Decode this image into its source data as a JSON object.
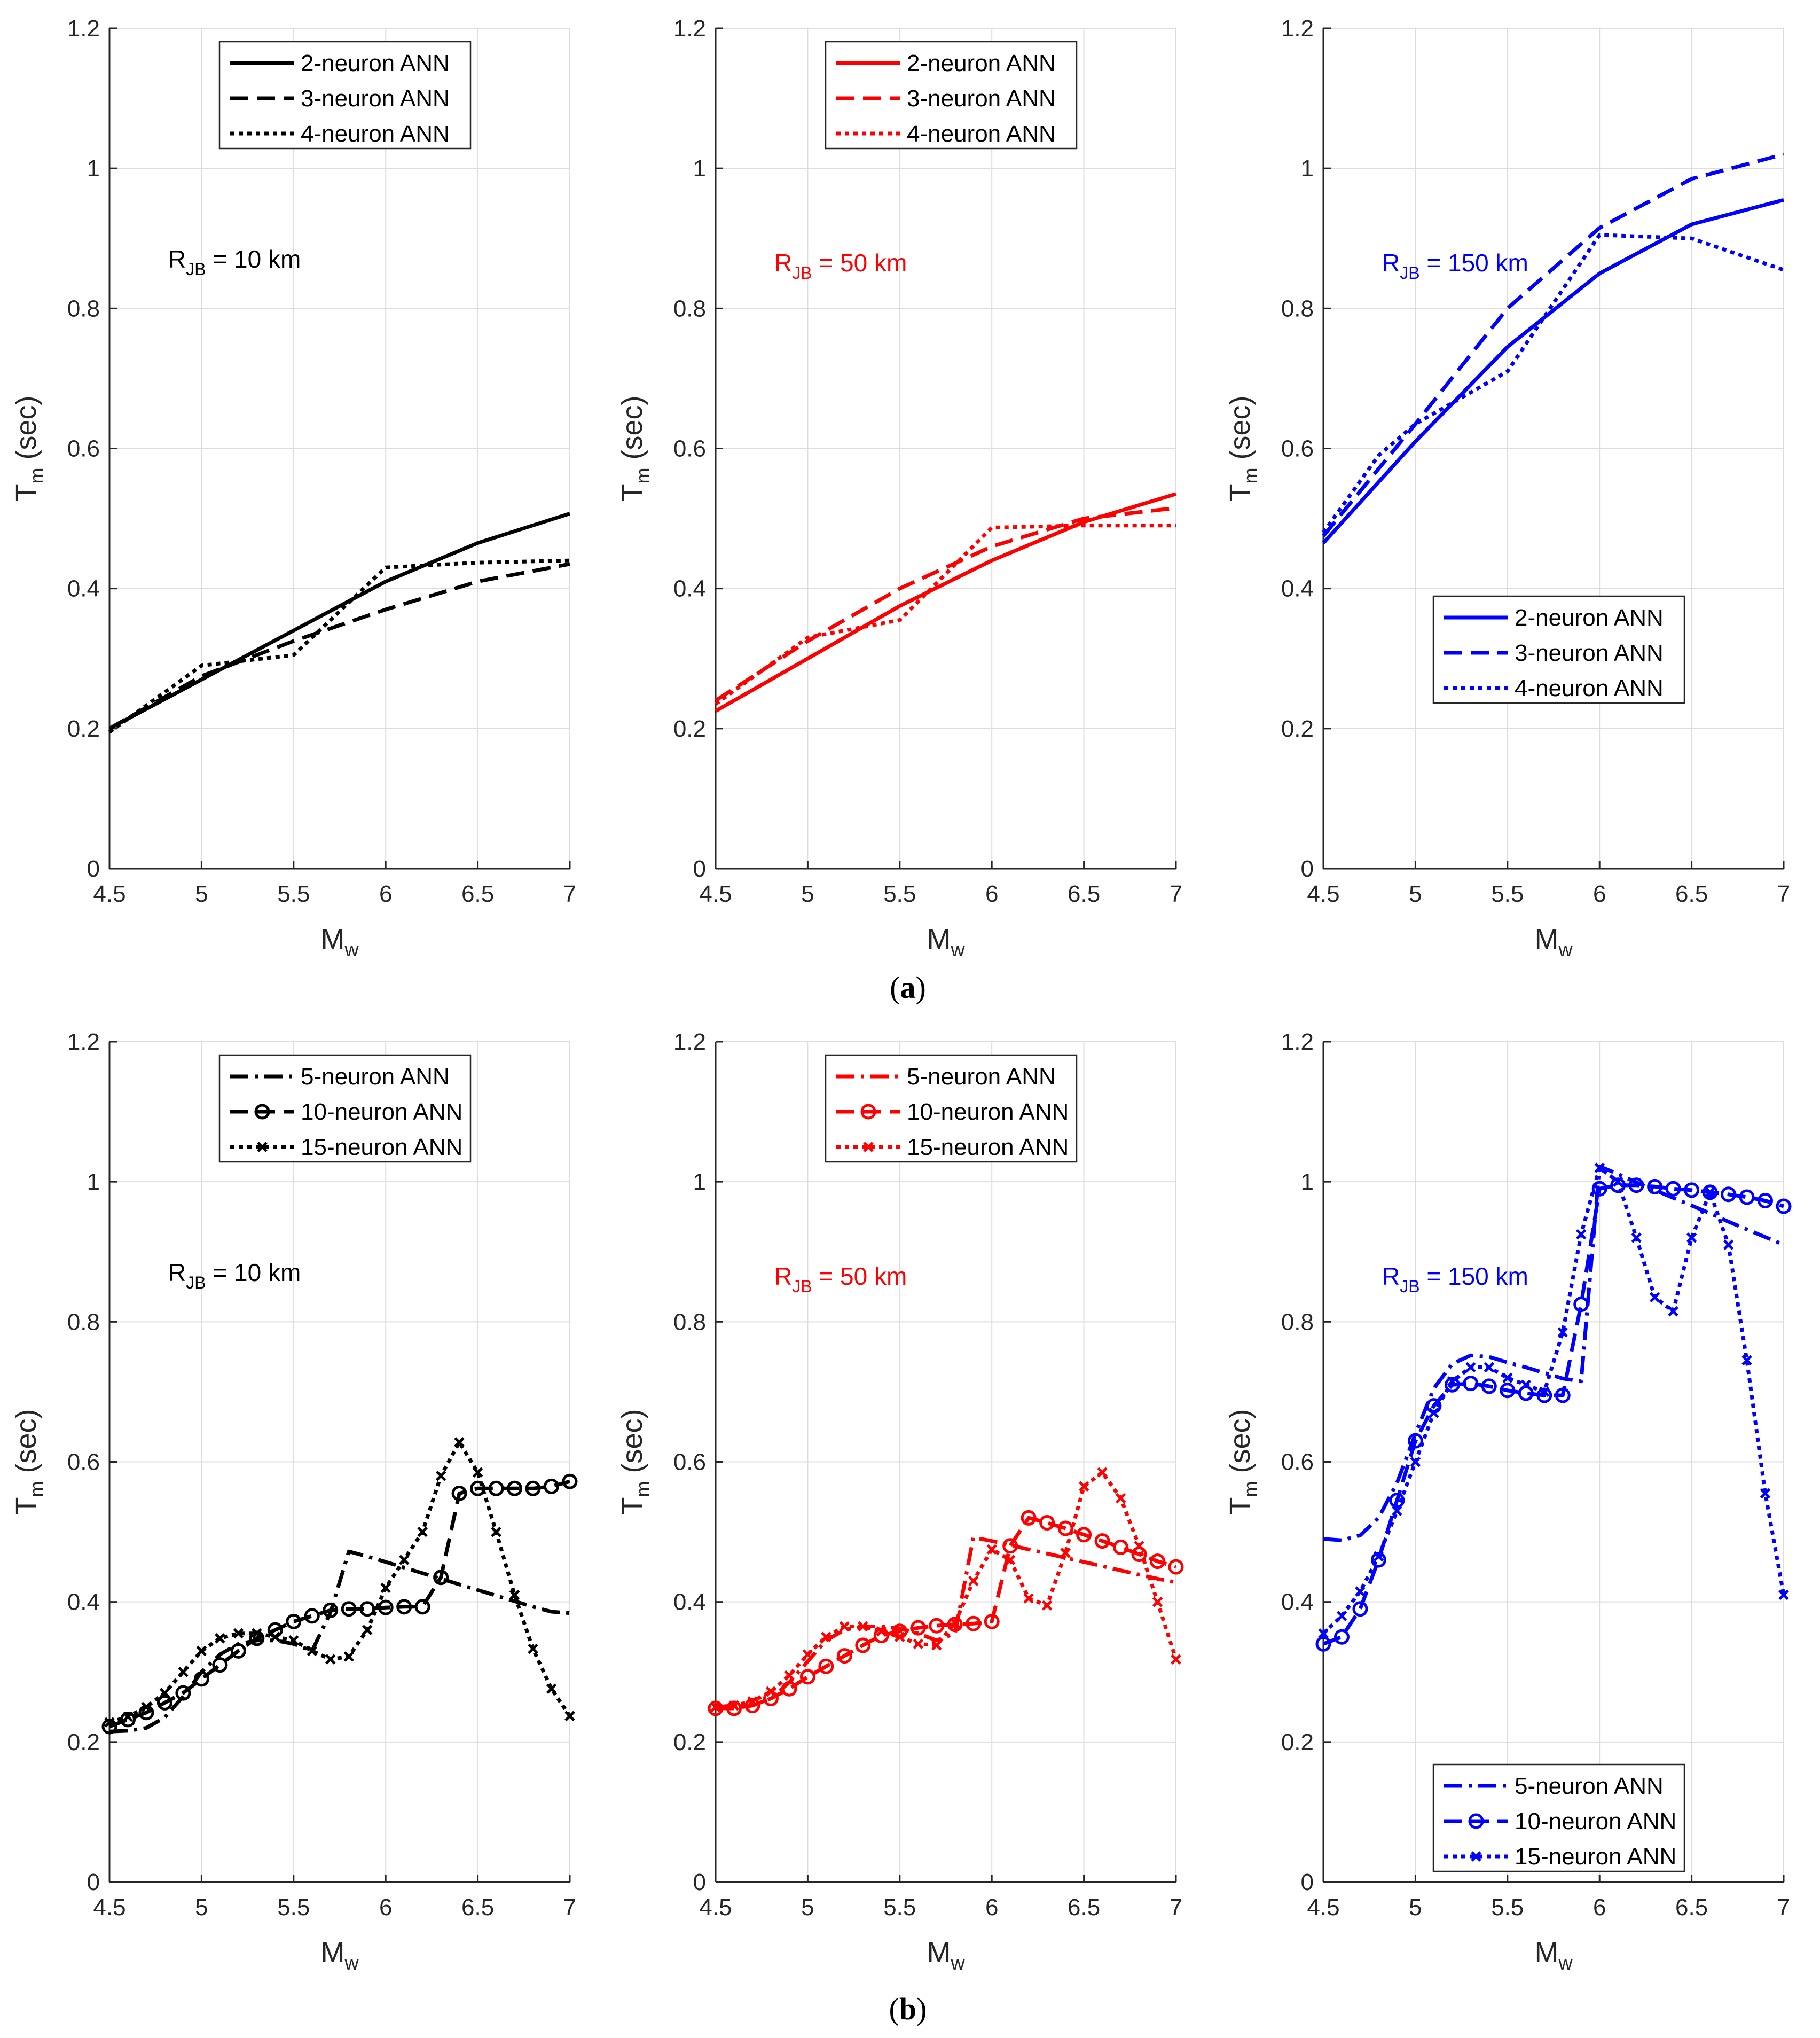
{
  "figure": {
    "caption_a_letter": "a",
    "caption_b_letter": "b"
  },
  "chart_data": [
    {
      "type": "line",
      "panel": "a",
      "color": "#000000",
      "xlabel": "M",
      "xlabel_sub": "w",
      "ylabel": "T",
      "ylabel_sub": "m",
      "ylabel_unit": "(sec)",
      "xlim": [
        4.5,
        7
      ],
      "ylim": [
        0,
        1.2
      ],
      "xticks": [
        4.5,
        5,
        5.5,
        6,
        6.5,
        7
      ],
      "yticks": [
        0,
        0.2,
        0.4,
        0.6,
        0.8,
        1,
        1.2
      ],
      "annotation": {
        "main": "R",
        "sub": "JB",
        "rest": " = 10 km"
      },
      "legend_position": "top-center",
      "series": [
        {
          "name": "2-neuron ANN",
          "style": "solid",
          "x": [
            4.5,
            5,
            5.5,
            6,
            6.5,
            7
          ],
          "y": [
            0.2,
            0.27,
            0.34,
            0.41,
            0.465,
            0.507
          ]
        },
        {
          "name": "3-neuron ANN",
          "style": "dashed",
          "x": [
            4.5,
            5,
            5.5,
            6,
            6.5,
            7
          ],
          "y": [
            0.2,
            0.275,
            0.325,
            0.37,
            0.41,
            0.435
          ]
        },
        {
          "name": "4-neuron ANN",
          "style": "dotted",
          "x": [
            4.5,
            5,
            5.5,
            6,
            6.5,
            7
          ],
          "y": [
            0.195,
            0.29,
            0.305,
            0.43,
            0.437,
            0.44
          ]
        }
      ]
    },
    {
      "type": "line",
      "panel": "a",
      "color": "#ff0000",
      "xlabel": "M",
      "xlabel_sub": "w",
      "ylabel": "T",
      "ylabel_sub": "m",
      "ylabel_unit": "(sec)",
      "xlim": [
        4.5,
        7
      ],
      "ylim": [
        0,
        1.2
      ],
      "xticks": [
        4.5,
        5,
        5.5,
        6,
        6.5,
        7
      ],
      "yticks": [
        0,
        0.2,
        0.4,
        0.6,
        0.8,
        1,
        1.2
      ],
      "annotation": {
        "main": "R",
        "sub": "JB",
        "rest": " = 50 km"
      },
      "legend_position": "top-center",
      "series": [
        {
          "name": "2-neuron ANN",
          "style": "solid",
          "x": [
            4.5,
            5,
            5.5,
            6,
            6.5,
            7
          ],
          "y": [
            0.225,
            0.3,
            0.375,
            0.44,
            0.495,
            0.535
          ]
        },
        {
          "name": "3-neuron ANN",
          "style": "dashed",
          "x": [
            4.5,
            5,
            5.5,
            6,
            6.5,
            7
          ],
          "y": [
            0.24,
            0.325,
            0.4,
            0.46,
            0.5,
            0.515
          ]
        },
        {
          "name": "4-neuron ANN",
          "style": "dotted",
          "x": [
            4.5,
            5,
            5.5,
            6,
            6.5,
            7
          ],
          "y": [
            0.235,
            0.33,
            0.355,
            0.487,
            0.49,
            0.49
          ]
        }
      ]
    },
    {
      "type": "line",
      "panel": "a",
      "color": "#0000ff",
      "xlabel": "M",
      "xlabel_sub": "w",
      "ylabel": "T",
      "ylabel_sub": "m",
      "ylabel_unit": "(sec)",
      "xlim": [
        4.5,
        7
      ],
      "ylim": [
        0,
        1.2
      ],
      "xticks": [
        4.5,
        5,
        5.5,
        6,
        6.5,
        7
      ],
      "yticks": [
        0,
        0.2,
        0.4,
        0.6,
        0.8,
        1,
        1.2
      ],
      "annotation": {
        "main": "R",
        "sub": "JB",
        "rest": " = 150 km"
      },
      "legend_position": "bottom-center",
      "series": [
        {
          "name": "2-neuron ANN",
          "style": "solid",
          "x": [
            4.5,
            5,
            5.5,
            6,
            6.5,
            7
          ],
          "y": [
            0.465,
            0.61,
            0.745,
            0.85,
            0.92,
            0.955
          ]
        },
        {
          "name": "3-neuron ANN",
          "style": "dashed",
          "x": [
            4.5,
            5,
            5.5,
            6,
            6.5,
            7
          ],
          "y": [
            0.475,
            0.635,
            0.8,
            0.915,
            0.985,
            1.02
          ]
        },
        {
          "name": "4-neuron ANN",
          "style": "dotted",
          "x": [
            4.5,
            4.8,
            5,
            5.5,
            6,
            6.5,
            7
          ],
          "y": [
            0.48,
            0.59,
            0.635,
            0.71,
            0.905,
            0.9,
            0.855
          ]
        }
      ]
    },
    {
      "type": "line",
      "panel": "b",
      "color": "#000000",
      "xlabel": "M",
      "xlabel_sub": "w",
      "ylabel": "T",
      "ylabel_sub": "m",
      "ylabel_unit": "(sec)",
      "xlim": [
        4.5,
        7
      ],
      "ylim": [
        0,
        1.2
      ],
      "xticks": [
        4.5,
        5,
        5.5,
        6,
        6.5,
        7
      ],
      "yticks": [
        0,
        0.2,
        0.4,
        0.6,
        0.8,
        1,
        1.2
      ],
      "annotation": {
        "main": "R",
        "sub": "JB",
        "rest": " = 10 km"
      },
      "legend_position": "top-center",
      "series": [
        {
          "name": "5-neuron ANN",
          "style": "dashdot",
          "marker": "none",
          "x": [
            4.5,
            4.6,
            4.7,
            4.8,
            4.9,
            5.0,
            5.1,
            5.2,
            5.3,
            5.4,
            5.5,
            5.6,
            5.7,
            5.8,
            5.9,
            6.0,
            6.1,
            6.2,
            6.3,
            6.4,
            6.5,
            6.6,
            6.7,
            6.8,
            6.9,
            7.0
          ],
          "y": [
            0.215,
            0.216,
            0.22,
            0.235,
            0.265,
            0.3,
            0.325,
            0.34,
            0.345,
            0.345,
            0.34,
            0.33,
            0.385,
            0.472,
            0.465,
            0.457,
            0.449,
            0.441,
            0.433,
            0.425,
            0.417,
            0.409,
            0.401,
            0.393,
            0.386,
            0.384
          ]
        },
        {
          "name": "10-neuron ANN",
          "style": "dashed",
          "marker": "circle",
          "x": [
            4.5,
            4.6,
            4.7,
            4.8,
            4.9,
            5.0,
            5.1,
            5.2,
            5.3,
            5.4,
            5.5,
            5.6,
            5.7,
            5.8,
            5.9,
            6.0,
            6.1,
            6.2,
            6.3,
            6.4,
            6.5,
            6.6,
            6.7,
            6.8,
            6.9,
            7.0
          ],
          "y": [
            0.222,
            0.232,
            0.242,
            0.256,
            0.27,
            0.29,
            0.31,
            0.33,
            0.348,
            0.36,
            0.372,
            0.38,
            0.388,
            0.39,
            0.39,
            0.392,
            0.393,
            0.393,
            0.435,
            0.555,
            0.562,
            0.562,
            0.562,
            0.562,
            0.565,
            0.572
          ]
        },
        {
          "name": "15-neuron ANN",
          "style": "dotted",
          "marker": "x",
          "x": [
            4.5,
            4.6,
            4.7,
            4.8,
            4.9,
            5.0,
            5.1,
            5.2,
            5.3,
            5.4,
            5.5,
            5.6,
            5.7,
            5.8,
            5.9,
            6.0,
            6.1,
            6.2,
            6.3,
            6.4,
            6.5,
            6.6,
            6.7,
            6.8,
            6.9,
            7.0
          ],
          "y": [
            0.228,
            0.236,
            0.25,
            0.27,
            0.3,
            0.33,
            0.348,
            0.355,
            0.355,
            0.35,
            0.345,
            0.33,
            0.318,
            0.322,
            0.36,
            0.42,
            0.46,
            0.5,
            0.58,
            0.628,
            0.585,
            0.5,
            0.41,
            0.333,
            0.276,
            0.237
          ]
        }
      ]
    },
    {
      "type": "line",
      "panel": "b",
      "color": "#ff0000",
      "xlabel": "M",
      "xlabel_sub": "w",
      "ylabel": "T",
      "ylabel_sub": "m",
      "ylabel_unit": "(sec)",
      "xlim": [
        4.5,
        7
      ],
      "ylim": [
        0,
        1.2
      ],
      "xticks": [
        4.5,
        5,
        5.5,
        6,
        6.5,
        7
      ],
      "yticks": [
        0,
        0.2,
        0.4,
        0.6,
        0.8,
        1,
        1.2
      ],
      "annotation": {
        "main": "R",
        "sub": "JB",
        "rest": " = 50 km"
      },
      "legend_position": "top-center",
      "series": [
        {
          "name": "5-neuron ANN",
          "style": "dashdot",
          "marker": "none",
          "x": [
            4.5,
            4.6,
            4.7,
            4.8,
            4.9,
            5.0,
            5.1,
            5.2,
            5.3,
            5.4,
            5.5,
            5.6,
            5.7,
            5.8,
            5.9,
            6.0,
            6.1,
            6.2,
            6.3,
            6.4,
            6.5,
            6.6,
            6.7,
            6.8,
            6.9,
            7.0
          ],
          "y": [
            0.25,
            0.25,
            0.252,
            0.262,
            0.285,
            0.315,
            0.345,
            0.36,
            0.365,
            0.365,
            0.362,
            0.355,
            0.345,
            0.355,
            0.492,
            0.487,
            0.481,
            0.475,
            0.469,
            0.463,
            0.457,
            0.451,
            0.445,
            0.439,
            0.433,
            0.428
          ]
        },
        {
          "name": "10-neuron ANN",
          "style": "dashed",
          "marker": "circle",
          "x": [
            4.5,
            4.6,
            4.7,
            4.8,
            4.9,
            5.0,
            5.1,
            5.2,
            5.3,
            5.4,
            5.5,
            5.6,
            5.7,
            5.8,
            5.9,
            6.0,
            6.1,
            6.2,
            6.3,
            6.4,
            6.5,
            6.6,
            6.7,
            6.8,
            6.9,
            7.0
          ],
          "y": [
            0.248,
            0.248,
            0.252,
            0.262,
            0.276,
            0.293,
            0.308,
            0.323,
            0.338,
            0.352,
            0.358,
            0.363,
            0.366,
            0.368,
            0.369,
            0.372,
            0.48,
            0.52,
            0.513,
            0.505,
            0.496,
            0.487,
            0.478,
            0.468,
            0.458,
            0.45
          ]
        },
        {
          "name": "15-neuron ANN",
          "style": "dotted",
          "marker": "x",
          "x": [
            4.5,
            4.6,
            4.7,
            4.8,
            4.9,
            5.0,
            5.1,
            5.2,
            5.3,
            5.4,
            5.5,
            5.6,
            5.7,
            5.8,
            5.9,
            6.0,
            6.1,
            6.2,
            6.3,
            6.4,
            6.5,
            6.6,
            6.7,
            6.8,
            6.9,
            7.0
          ],
          "y": [
            0.25,
            0.252,
            0.258,
            0.272,
            0.295,
            0.325,
            0.35,
            0.365,
            0.365,
            0.358,
            0.35,
            0.34,
            0.338,
            0.37,
            0.43,
            0.475,
            0.46,
            0.405,
            0.395,
            0.47,
            0.565,
            0.585,
            0.548,
            0.48,
            0.4,
            0.318
          ]
        }
      ]
    },
    {
      "type": "line",
      "panel": "b",
      "color": "#0000ff",
      "xlabel": "M",
      "xlabel_sub": "w",
      "ylabel": "T",
      "ylabel_sub": "m",
      "ylabel_unit": "(sec)",
      "xlim": [
        4.5,
        7
      ],
      "ylim": [
        0,
        1.2
      ],
      "xticks": [
        4.5,
        5,
        5.5,
        6,
        6.5,
        7
      ],
      "yticks": [
        0,
        0.2,
        0.4,
        0.6,
        0.8,
        1,
        1.2
      ],
      "annotation": {
        "main": "R",
        "sub": "JB",
        "rest": " = 150 km"
      },
      "legend_position": "bottom-center",
      "series": [
        {
          "name": "5-neuron ANN",
          "style": "dashdot",
          "marker": "none",
          "x": [
            4.5,
            4.6,
            4.7,
            4.8,
            4.9,
            5.0,
            5.1,
            5.2,
            5.3,
            5.4,
            5.5,
            5.6,
            5.7,
            5.8,
            5.9,
            6.0,
            6.1,
            6.2,
            6.3,
            6.4,
            6.5,
            6.6,
            6.7,
            6.8,
            6.9,
            7.0
          ],
          "y": [
            0.49,
            0.488,
            0.495,
            0.52,
            0.57,
            0.64,
            0.705,
            0.74,
            0.752,
            0.75,
            0.742,
            0.735,
            0.727,
            0.719,
            0.715,
            1.022,
            1.011,
            0.999,
            0.988,
            0.977,
            0.966,
            0.955,
            0.943,
            0.932,
            0.921,
            0.91
          ]
        },
        {
          "name": "10-neuron ANN",
          "style": "dashed",
          "marker": "circle",
          "x": [
            4.5,
            4.6,
            4.7,
            4.8,
            4.9,
            5.0,
            5.1,
            5.2,
            5.3,
            5.4,
            5.5,
            5.6,
            5.7,
            5.8,
            5.9,
            6.0,
            6.1,
            6.2,
            6.3,
            6.4,
            6.5,
            6.6,
            6.7,
            6.8,
            6.9,
            7.0
          ],
          "y": [
            0.34,
            0.35,
            0.39,
            0.46,
            0.545,
            0.63,
            0.68,
            0.71,
            0.712,
            0.708,
            0.702,
            0.698,
            0.695,
            0.695,
            0.825,
            0.99,
            0.995,
            0.995,
            0.993,
            0.99,
            0.988,
            0.985,
            0.982,
            0.978,
            0.973,
            0.965
          ]
        },
        {
          "name": "15-neuron ANN",
          "style": "dotted",
          "marker": "x",
          "x": [
            4.5,
            4.6,
            4.7,
            4.8,
            4.9,
            5.0,
            5.1,
            5.2,
            5.3,
            5.4,
            5.5,
            5.6,
            5.7,
            5.8,
            5.9,
            6.0,
            6.1,
            6.2,
            6.3,
            6.4,
            6.5,
            6.6,
            6.7,
            6.8,
            6.9,
            7.0
          ],
          "y": [
            0.355,
            0.38,
            0.415,
            0.465,
            0.53,
            0.6,
            0.67,
            0.715,
            0.735,
            0.735,
            0.72,
            0.71,
            0.7,
            0.785,
            0.925,
            1.02,
            1.0,
            0.92,
            0.835,
            0.815,
            0.92,
            0.985,
            0.91,
            0.745,
            0.555,
            0.41
          ]
        }
      ]
    }
  ]
}
